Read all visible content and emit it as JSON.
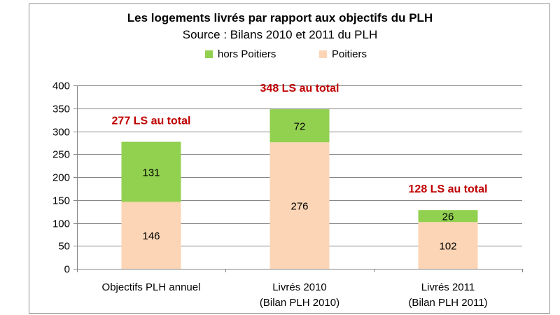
{
  "chart_data": {
    "type": "bar",
    "stacked": true,
    "title": "Les logements livrés par rapport aux objectifs du PLH",
    "subtitle": "Source : Bilans 2010 et 2011 du PLH",
    "ylim": [
      0,
      400
    ],
    "yticks": [
      "0",
      "50",
      "100",
      "150",
      "200",
      "250",
      "300",
      "350",
      "400"
    ],
    "grid": true,
    "legend_position": "top",
    "categories": [
      [
        "Objectifs PLH annuel"
      ],
      [
        "Livrés 2010",
        "(Bilan PLH 2010)"
      ],
      [
        "Livrés 2011",
        "(Bilan PLH 2011)"
      ]
    ],
    "series": [
      {
        "name": "Poitiers",
        "color": "#fbd5b5",
        "values": [
          146,
          276,
          102
        ]
      },
      {
        "name": "hors Poitiers",
        "color": "#92d050",
        "values": [
          131,
          72,
          26
        ]
      }
    ],
    "totals": [
      "277 LS au total",
      "348 LS au total",
      "128 LS au total"
    ],
    "total_color": "#c00000"
  }
}
